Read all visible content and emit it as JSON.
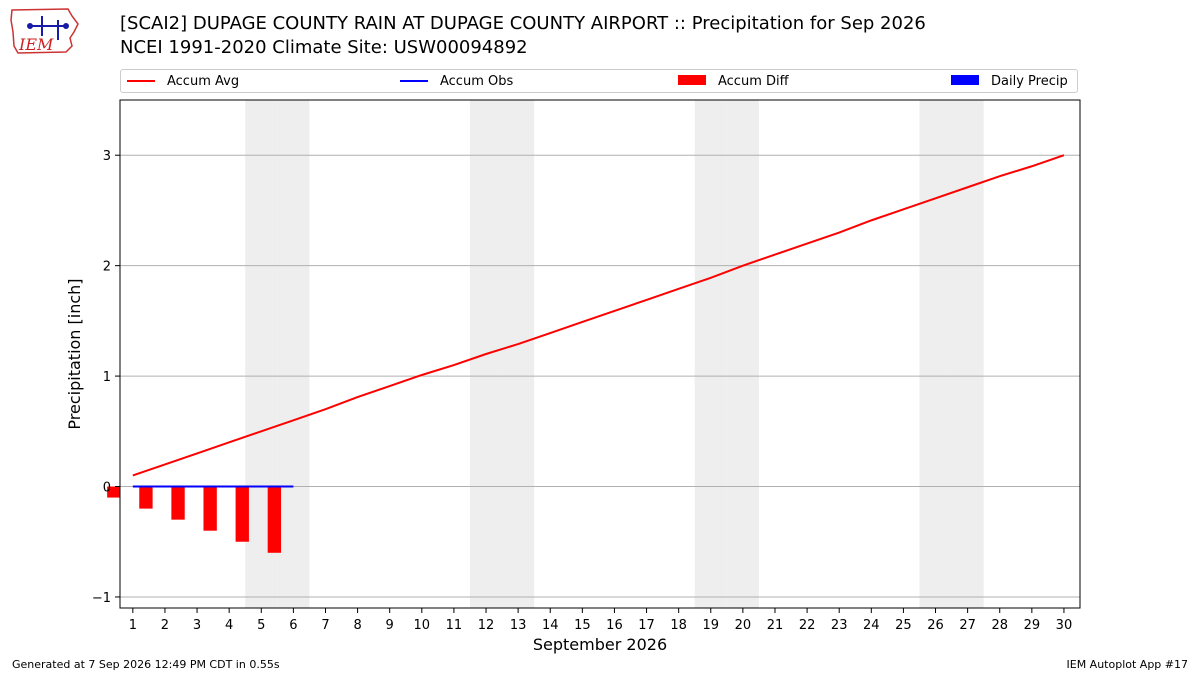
{
  "title": "[SCAI2] DUPAGE COUNTY RAIN AT DUPAGE COUNTY AIRPORT :: Precipitation for Sep 2026",
  "subtitle": "NCEI 1991-2020 Climate Site: USW00094892",
  "logo_text": "IEM",
  "footer_left": "Generated at 7 Sep 2026 12:49 PM CDT in 0.55s",
  "footer_right": "IEM Autoplot App #17",
  "colors": {
    "accum_avg": "#ff0000",
    "accum_obs": "#0000ff",
    "accum_diff": "#ff0000",
    "daily_precip": "#0000ff",
    "weekend_shade": "#eeeeee",
    "grid": "#b0b0b0"
  },
  "legend": [
    {
      "label": "Accum Avg",
      "kind": "line",
      "color": "#ff0000"
    },
    {
      "label": "Accum Obs",
      "kind": "line",
      "color": "#0000ff"
    },
    {
      "label": "Accum Diff",
      "kind": "rect",
      "color": "#ff0000"
    },
    {
      "label": "Daily Precip",
      "kind": "rect",
      "color": "#0000ff"
    }
  ],
  "chart_data": {
    "type": "line",
    "title": "[SCAI2] DUPAGE COUNTY RAIN AT DUPAGE COUNTY AIRPORT :: Precipitation for Sep 2026",
    "xlabel": "September 2026",
    "ylabel": "Precipitation [inch]",
    "xlim": [
      0.6,
      30.5
    ],
    "ylim": [
      -1.1,
      3.5
    ],
    "yticks": [
      -1,
      0,
      1,
      2,
      3
    ],
    "ytick_labels": [
      "−1",
      "0",
      "1",
      "2",
      "3"
    ],
    "x": [
      1,
      2,
      3,
      4,
      5,
      6,
      7,
      8,
      9,
      10,
      11,
      12,
      13,
      14,
      15,
      16,
      17,
      18,
      19,
      20,
      21,
      22,
      23,
      24,
      25,
      26,
      27,
      28,
      29,
      30
    ],
    "xtick_labels": [
      "1",
      "2",
      "3",
      "4",
      "5",
      "6",
      "7",
      "8",
      "9",
      "10",
      "11",
      "12",
      "13",
      "14",
      "15",
      "16",
      "17",
      "18",
      "19",
      "20",
      "21",
      "22",
      "23",
      "24",
      "25",
      "26",
      "27",
      "28",
      "29",
      "30"
    ],
    "weekend_days": [
      5,
      6,
      12,
      13,
      19,
      20,
      26,
      27
    ],
    "grid": "horizontal",
    "legend_position": "top",
    "series": [
      {
        "name": "Accum Avg",
        "kind": "line",
        "x": [
          1,
          2,
          3,
          4,
          5,
          6,
          7,
          8,
          9,
          10,
          11,
          12,
          13,
          14,
          15,
          16,
          17,
          18,
          19,
          20,
          21,
          22,
          23,
          24,
          25,
          26,
          27,
          28,
          29,
          30
        ],
        "values": [
          0.1,
          0.2,
          0.3,
          0.4,
          0.5,
          0.6,
          0.7,
          0.81,
          0.91,
          1.01,
          1.1,
          1.2,
          1.29,
          1.39,
          1.49,
          1.59,
          1.69,
          1.79,
          1.89,
          2.0,
          2.1,
          2.2,
          2.3,
          2.41,
          2.51,
          2.61,
          2.71,
          2.81,
          2.9,
          3.0
        ]
      },
      {
        "name": "Accum Obs",
        "kind": "line",
        "x": [
          1,
          2,
          3,
          4,
          5,
          6
        ],
        "values": [
          0,
          0,
          0,
          0,
          0,
          0
        ]
      },
      {
        "name": "Accum Diff",
        "kind": "bar",
        "x": [
          1,
          2,
          3,
          4,
          5,
          6
        ],
        "values": [
          -0.1,
          -0.2,
          -0.3,
          -0.4,
          -0.5,
          -0.6
        ]
      },
      {
        "name": "Daily Precip",
        "kind": "bar",
        "x": [
          1,
          2,
          3,
          4,
          5,
          6
        ],
        "values": [
          0,
          0,
          0,
          0,
          0,
          0
        ]
      }
    ]
  }
}
